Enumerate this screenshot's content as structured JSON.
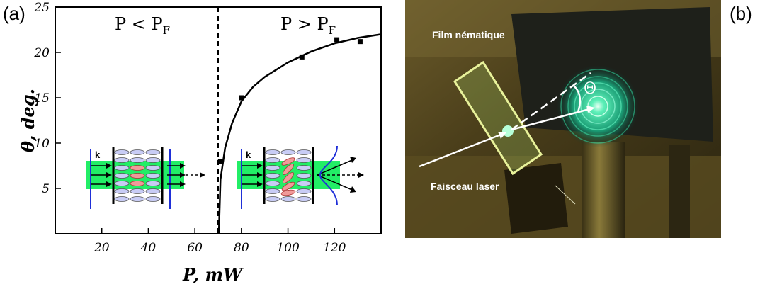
{
  "panels": {
    "left_label": "(a)",
    "right_label": "(b)"
  },
  "chart_data": {
    "type": "scatter",
    "title": "",
    "xlabel": "P, mW",
    "ylabel": "θ, deg.",
    "xlim": [
      0,
      140
    ],
    "ylim": [
      0,
      25
    ],
    "x_ticks": [
      20,
      40,
      60,
      80,
      100,
      120
    ],
    "y_ticks": [
      5,
      10,
      15,
      20,
      25
    ],
    "threshold_x": 70,
    "regions": {
      "below": "P < P",
      "below_sub": "F",
      "above": "P > P",
      "above_sub": "F"
    },
    "series": [
      {
        "type": "scatter",
        "x": [
          71,
          80,
          106,
          121,
          131
        ],
        "y": [
          8,
          15,
          19.5,
          21.4,
          21.2
        ]
      },
      {
        "type": "line",
        "x": [
          70.3,
          71,
          73,
          76,
          80,
          85,
          90,
          100,
          110,
          120,
          130,
          140
        ],
        "y": [
          0,
          6,
          9.5,
          12.2,
          14.6,
          16.2,
          17.3,
          18.9,
          20.1,
          21.0,
          21.6,
          22.0
        ]
      }
    ],
    "insets": [
      {
        "label": "k"
      },
      {
        "label": "k"
      }
    ],
    "grid": false,
    "legend": "none"
  },
  "photo": {
    "film_label": "Film nématique",
    "beam_label": "Faisceau laser",
    "angle_label": "Θ"
  }
}
